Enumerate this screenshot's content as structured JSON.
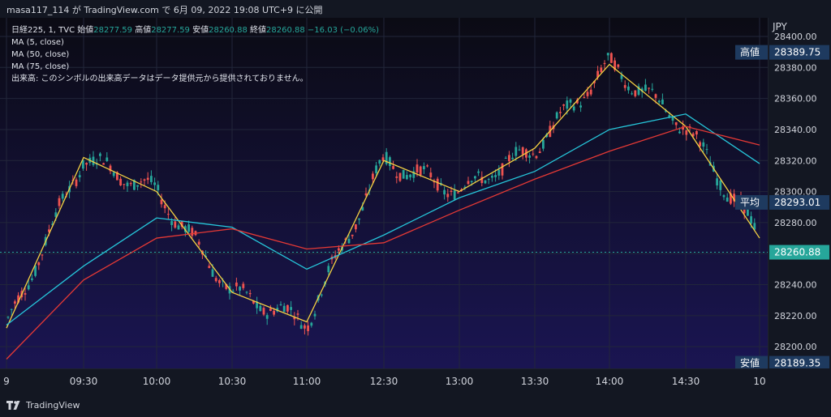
{
  "header": {
    "attribution": "masa117_114 が TradingView.com で 6月 09, 2022 19:08 UTC+9 に公開"
  },
  "legend": {
    "symbol": "日経225, 1, TVC",
    "open_label": "始値",
    "open": "28277.59",
    "high_label": "高値",
    "high": "28277.59",
    "low_label": "安値",
    "low": "28260.88",
    "close_label": "終値",
    "close": "28260.88",
    "change": "−16.03 (−0.06%)",
    "ma5": "MA (5, close)",
    "ma50": "MA (50, close)",
    "ma75": "MA (75, close)",
    "volume_note": "出来高: このシンボルの出来高データはデータ提供元から提供されておりません。"
  },
  "axis": {
    "currency": "JPY",
    "price_ticks": [
      "28400.00",
      "28380.00",
      "28360.00",
      "28340.00",
      "28320.00",
      "28300.00",
      "28280.00",
      "28260.00",
      "28240.00",
      "28220.00",
      "28200.00"
    ],
    "labels": {
      "high_label": "高値",
      "high_value": "28389.75",
      "avg_label": "平均",
      "avg_value": "28293.01",
      "last_value": "28260.88",
      "low_label": "安値",
      "low_value": "28189.35"
    },
    "time_ticks": [
      "9",
      "09:30",
      "10:00",
      "10:30",
      "11:00",
      "12:30",
      "13:00",
      "13:30",
      "14:00",
      "14:30",
      "10"
    ]
  },
  "footer": {
    "brand": "TradingView"
  },
  "colors": {
    "up": "#26a69a",
    "down": "#ef5350",
    "ma5": "#f5d142",
    "ma50": "#26c6da",
    "ma75": "#e53935"
  },
  "chart_data": {
    "type": "line",
    "title": "日経225, 1, TVC",
    "ylabel": "JPY",
    "ylim": [
      28186,
      28412
    ],
    "x": [
      "9",
      "09:30",
      "10:00",
      "10:30",
      "11:00",
      "12:30",
      "13:00",
      "13:30",
      "14:00",
      "14:30",
      "10"
    ],
    "series": [
      {
        "name": "MA (5, close)",
        "values": [
          28212,
          28322,
          28300,
          28235,
          28216,
          28320,
          28300,
          28328,
          28382,
          28342,
          28270
        ]
      },
      {
        "name": "MA (50, close)",
        "values": [
          28214,
          28252,
          28283,
          28277,
          28250,
          28272,
          28296,
          28313,
          28340,
          28350,
          28318
        ]
      },
      {
        "name": "MA (75, close)",
        "values": [
          28192,
          28243,
          28270,
          28276,
          28263,
          28267,
          28288,
          28308,
          28326,
          28342,
          28330
        ]
      }
    ],
    "price_high": 28389.75,
    "price_avg": 28293.01,
    "price_last": 28260.88,
    "price_low": 28189.35
  }
}
